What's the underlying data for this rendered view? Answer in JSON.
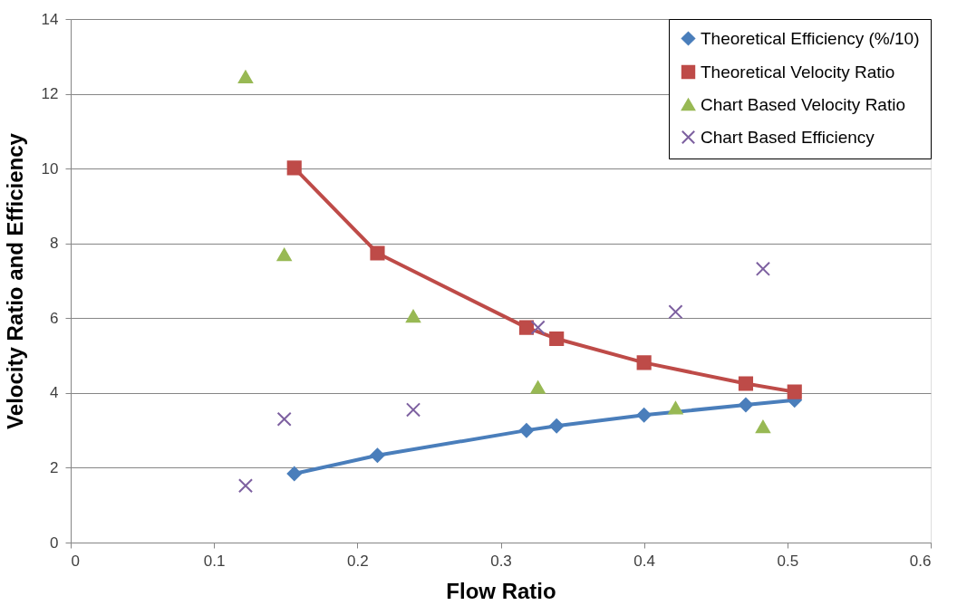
{
  "chart_data": {
    "type": "line",
    "xlabel": "Flow Ratio",
    "ylabel": "Velocity Ratio and Efficiency",
    "xlim": [
      0,
      0.6
    ],
    "xticks": [
      0,
      0.1,
      0.2,
      0.3,
      0.4,
      0.5,
      0.6
    ],
    "ylim": [
      0,
      14
    ],
    "yticks": [
      0,
      2,
      4,
      6,
      8,
      10,
      12,
      14
    ],
    "grid": "y",
    "legend": "top right",
    "series": [
      {
        "name": "Theoretical Efficiency (%/10)",
        "marker": "diamond",
        "color": "#4a7ebb",
        "x": [
          0.156,
          0.214,
          0.318,
          0.339,
          0.4,
          0.471,
          0.505
        ],
        "values": [
          1.84,
          2.33,
          3.0,
          3.12,
          3.41,
          3.68,
          3.81
        ]
      },
      {
        "name": "Theoretical Velocity Ratio",
        "marker": "square",
        "color": "#be4b48",
        "x": [
          0.156,
          0.214,
          0.318,
          0.339,
          0.4,
          0.471,
          0.505
        ],
        "values": [
          10.02,
          7.74,
          5.75,
          5.45,
          4.81,
          4.25,
          4.03
        ]
      },
      {
        "name": "Chart Based Velocity Ratio",
        "type": "scatter",
        "marker": "triangle",
        "color": "#98b954",
        "x": [
          0.122,
          0.149,
          0.239,
          0.326,
          0.422,
          0.483
        ],
        "values": [
          12.45,
          7.7,
          6.05,
          4.15,
          3.6,
          3.1
        ]
      },
      {
        "name": "Chart Based Efficiency",
        "type": "scatter",
        "marker": "cross",
        "color": "#7d60a0",
        "x": [
          0.122,
          0.149,
          0.239,
          0.326,
          0.422,
          0.483
        ],
        "values": [
          1.52,
          3.3,
          3.55,
          5.75,
          6.17,
          7.32
        ]
      }
    ]
  }
}
